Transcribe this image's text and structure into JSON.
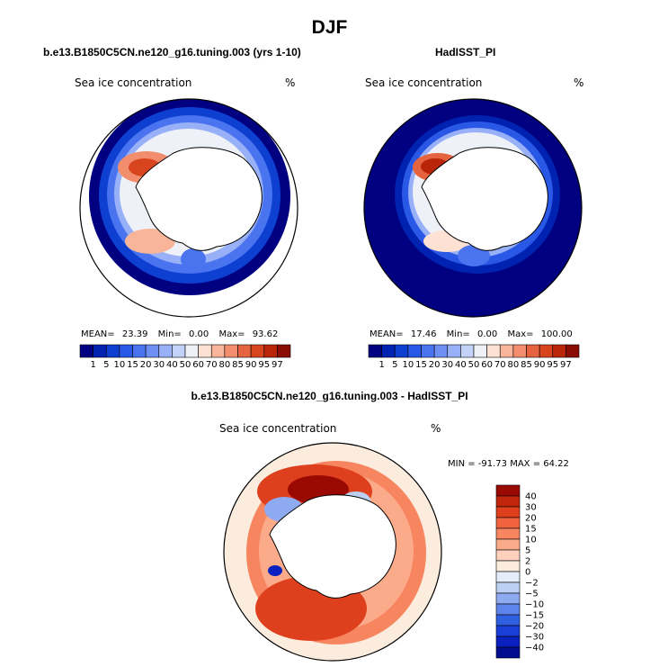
{
  "title": "DJF",
  "panels": [
    {
      "title": "b.e13.B1850C5CN.ne120_g16.tuning.003 (yrs 1-10)",
      "variable": "Sea ice concentration",
      "units": "%",
      "stats": {
        "mean_label": "MEAN=",
        "mean": "23.39",
        "min_label": "Min=",
        "min": "0.00",
        "max_label": "Max=",
        "max": "93.62"
      }
    },
    {
      "title": "HadISST_PI",
      "variable": "Sea ice concentration",
      "units": "%",
      "stats": {
        "mean_label": "MEAN=",
        "mean": "17.46",
        "min_label": "Min=",
        "min": "0.00",
        "max_label": "Max=",
        "max": "100.00"
      }
    },
    {
      "title": "b.e13.B1850C5CN.ne120_g16.tuning.003 - HadISST_PI",
      "variable": "Sea ice concentration",
      "units": "%",
      "stats_text": "MIN = -91.73 MAX =  64.22"
    }
  ],
  "chart_data": [
    {
      "type": "heatmap",
      "projection": "south polar stereographic",
      "title": "b.e13.B1850C5CN.ne120_g16.tuning.003 (yrs 1-10)",
      "variable": "Sea ice concentration",
      "units": "%",
      "mean": 23.39,
      "min": 0.0,
      "max": 93.62,
      "levels": [
        1,
        5,
        10,
        15,
        20,
        30,
        40,
        50,
        60,
        70,
        80,
        85,
        90,
        95,
        97
      ],
      "level_labels": [
        "1",
        "5",
        "10",
        "15",
        "20",
        "30",
        "40",
        "50",
        "60",
        "70",
        "80",
        "85",
        "90",
        "95",
        "97"
      ],
      "colors": [
        "#000080",
        "#0022b0",
        "#0d3fd1",
        "#2957e6",
        "#4a73ef",
        "#6e90f4",
        "#97b0f7",
        "#c2d2f8",
        "#eef2f8",
        "#fde1d2",
        "#f9b59a",
        "#f28e6e",
        "#e6633f",
        "#d8441e",
        "#b92508",
        "#8a0c02"
      ],
      "colorbar_position": "bottom",
      "land_color": "#ffffff"
    },
    {
      "type": "heatmap",
      "projection": "south polar stereographic",
      "title": "HadISST_PI",
      "variable": "Sea ice concentration",
      "units": "%",
      "mean": 17.46,
      "min": 0.0,
      "max": 100.0,
      "levels": [
        1,
        5,
        10,
        15,
        20,
        30,
        40,
        50,
        60,
        70,
        80,
        85,
        90,
        95,
        97
      ],
      "level_labels": [
        "1",
        "5",
        "10",
        "15",
        "20",
        "30",
        "40",
        "50",
        "60",
        "70",
        "80",
        "85",
        "90",
        "95",
        "97"
      ],
      "colors": [
        "#000080",
        "#0022b0",
        "#0d3fd1",
        "#2957e6",
        "#4a73ef",
        "#6e90f4",
        "#97b0f7",
        "#c2d2f8",
        "#eef2f8",
        "#fde1d2",
        "#f9b59a",
        "#f28e6e",
        "#e6633f",
        "#d8441e",
        "#b92508",
        "#8a0c02"
      ],
      "colorbar_position": "bottom",
      "land_color": "#ffffff"
    },
    {
      "type": "heatmap",
      "projection": "south polar stereographic",
      "title": "b.e13.B1850C5CN.ne120_g16.tuning.003 - HadISST_PI",
      "variable": "Sea ice concentration",
      "units": "%",
      "min": -91.73,
      "max": 64.22,
      "levels": [
        40,
        30,
        20,
        15,
        10,
        5,
        2,
        0,
        -2,
        -5,
        -10,
        -15,
        -20,
        -30,
        -40
      ],
      "level_labels": [
        "40",
        "30",
        "20",
        "15",
        "10",
        "5",
        "2",
        "0",
        "−2",
        "−5",
        "−10",
        "−15",
        "−20",
        "−30",
        "−40"
      ],
      "colors": [
        "#9b0a02",
        "#c1250b",
        "#de401e",
        "#f0633d",
        "#f78660",
        "#fbab8a",
        "#fdd1bd",
        "#fbecde",
        "#e3ecf8",
        "#bcd0f4",
        "#8eaaf0",
        "#5e83ea",
        "#3060e2",
        "#1a3fd8",
        "#0a21bf",
        "#000d8f"
      ],
      "colorbar_position": "right",
      "land_color": "#ffffff"
    }
  ]
}
